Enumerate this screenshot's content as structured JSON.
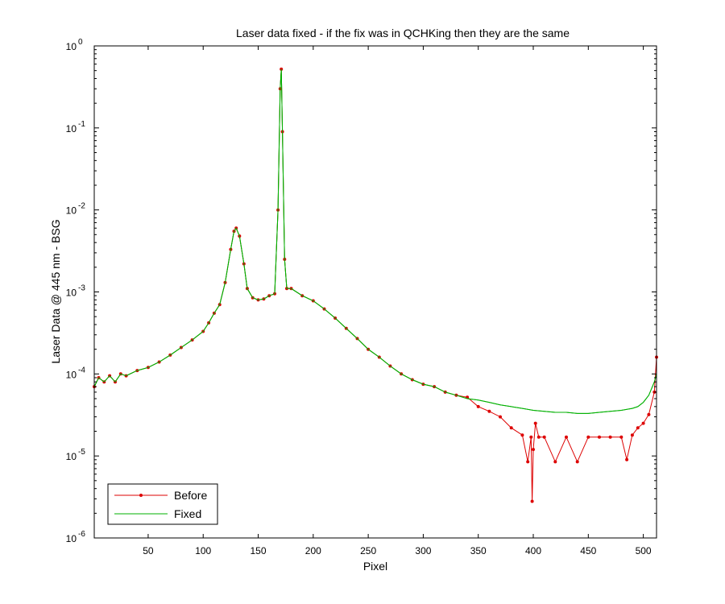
{
  "chart_data": {
    "type": "line",
    "title": "Laser data fixed - if the fix was in QCHKing then they are the same",
    "xlabel": "Pixel",
    "ylabel": "Laser Data @ 445 nm - BSG",
    "xlim": [
      1,
      512
    ],
    "ylim": [
      1e-06,
      1
    ],
    "yscale": "log",
    "grid": false,
    "legend_position": "bottom-left",
    "x_ticks": [
      "50",
      "100",
      "150",
      "200",
      "250",
      "300",
      "350",
      "400",
      "450",
      "500"
    ],
    "y_ticks": [
      {
        "base": "10",
        "exp": "0"
      },
      {
        "base": "10",
        "exp": "-1"
      },
      {
        "base": "10",
        "exp": "-2"
      },
      {
        "base": "10",
        "exp": "-3"
      },
      {
        "base": "10",
        "exp": "-4"
      },
      {
        "base": "10",
        "exp": "-5"
      },
      {
        "base": "10",
        "exp": "-6"
      }
    ],
    "series": [
      {
        "name": "Before",
        "color": "#dd0000",
        "marker": "dot",
        "x": [
          1,
          5,
          10,
          15,
          20,
          25,
          30,
          40,
          50,
          60,
          70,
          80,
          90,
          100,
          105,
          110,
          115,
          120,
          125,
          128,
          130,
          133,
          137,
          140,
          145,
          150,
          155,
          160,
          165,
          168,
          170,
          171,
          172,
          174,
          176,
          180,
          190,
          200,
          210,
          220,
          230,
          240,
          250,
          260,
          270,
          280,
          290,
          300,
          310,
          320,
          330,
          340,
          350,
          360,
          370,
          380,
          390,
          395,
          398,
          399,
          400,
          402,
          405,
          410,
          420,
          430,
          440,
          450,
          460,
          470,
          480,
          485,
          490,
          495,
          500,
          505,
          510,
          512
        ],
        "values": [
          7e-05,
          9e-05,
          8e-05,
          9.5e-05,
          8e-05,
          0.0001,
          9.5e-05,
          0.00011,
          0.00012,
          0.00014,
          0.00017,
          0.00021,
          0.00026,
          0.00033,
          0.00042,
          0.00055,
          0.0007,
          0.0013,
          0.0033,
          0.0055,
          0.006,
          0.0048,
          0.0022,
          0.0011,
          0.00085,
          0.0008,
          0.00082,
          0.0009,
          0.00095,
          0.01,
          0.3,
          0.52,
          0.09,
          0.0025,
          0.0011,
          0.0011,
          0.0009,
          0.00078,
          0.00062,
          0.00048,
          0.00036,
          0.00027,
          0.0002,
          0.00016,
          0.000125,
          0.0001,
          8.5e-05,
          7.5e-05,
          7e-05,
          6e-05,
          5.5e-05,
          5.2e-05,
          4e-05,
          3.5e-05,
          3e-05,
          2.2e-05,
          1.8e-05,
          8.5e-06,
          1.7e-05,
          2.8e-06,
          1.2e-05,
          2.5e-05,
          1.7e-05,
          1.7e-05,
          8.5e-06,
          1.7e-05,
          8.5e-06,
          1.7e-05,
          1.7e-05,
          1.7e-05,
          1.7e-05,
          9e-06,
          1.8e-05,
          2.2e-05,
          2.5e-05,
          3.2e-05,
          6e-05,
          0.00016
        ]
      },
      {
        "name": "Fixed",
        "color": "#00b000",
        "marker": "none",
        "x": [
          1,
          5,
          10,
          15,
          20,
          25,
          30,
          40,
          50,
          60,
          70,
          80,
          90,
          100,
          105,
          110,
          115,
          120,
          125,
          128,
          130,
          133,
          137,
          140,
          145,
          150,
          155,
          160,
          165,
          168,
          170,
          171,
          172,
          174,
          176,
          180,
          190,
          200,
          210,
          220,
          230,
          240,
          250,
          260,
          270,
          280,
          290,
          300,
          310,
          320,
          330,
          340,
          350,
          360,
          370,
          380,
          390,
          400,
          410,
          420,
          430,
          440,
          450,
          460,
          470,
          480,
          490,
          495,
          500,
          505,
          510,
          512
        ],
        "values": [
          7e-05,
          9e-05,
          8e-05,
          9.5e-05,
          8e-05,
          0.0001,
          9.5e-05,
          0.00011,
          0.00012,
          0.00014,
          0.00017,
          0.00021,
          0.00026,
          0.00033,
          0.00042,
          0.00055,
          0.0007,
          0.0013,
          0.0033,
          0.0055,
          0.006,
          0.0048,
          0.0022,
          0.0011,
          0.00085,
          0.0008,
          0.00082,
          0.0009,
          0.00095,
          0.01,
          0.3,
          0.52,
          0.09,
          0.0025,
          0.0011,
          0.0011,
          0.0009,
          0.00078,
          0.00062,
          0.00048,
          0.00036,
          0.00027,
          0.0002,
          0.00016,
          0.000125,
          0.0001,
          8.5e-05,
          7.5e-05,
          7e-05,
          6e-05,
          5.5e-05,
          5e-05,
          4.8e-05,
          4.5e-05,
          4.2e-05,
          4e-05,
          3.8e-05,
          3.6e-05,
          3.5e-05,
          3.4e-05,
          3.4e-05,
          3.3e-05,
          3.3e-05,
          3.4e-05,
          3.5e-05,
          3.6e-05,
          3.8e-05,
          4e-05,
          4.5e-05,
          5.5e-05,
          8e-05,
          0.0001
        ]
      }
    ]
  }
}
